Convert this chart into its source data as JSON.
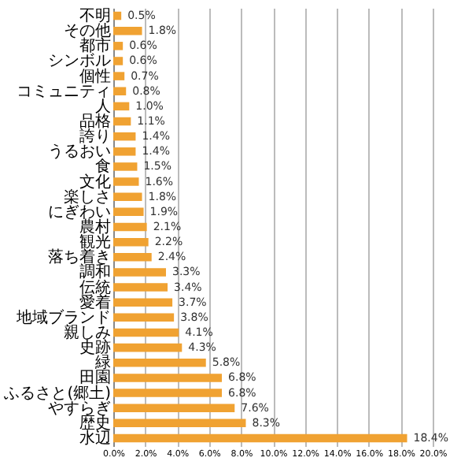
{
  "chart_data": {
    "type": "bar",
    "orientation": "horizontal",
    "categories": [
      "不明",
      "その他",
      "都市",
      "シンボル",
      "個性",
      "コミュニティ",
      "人",
      "品格",
      "誇り",
      "うるおい",
      "食",
      "文化",
      "楽しさ",
      "にぎわい",
      "農村",
      "観光",
      "落ち着き",
      "調和",
      "伝統",
      "愛着",
      "地域ブランド",
      "親しみ",
      "史跡",
      "緑",
      "田園",
      "ふるさと(郷土)",
      "やすらぎ",
      "歴史",
      "水辺"
    ],
    "values": [
      0.5,
      1.8,
      0.6,
      0.6,
      0.7,
      0.8,
      1.0,
      1.1,
      1.4,
      1.4,
      1.5,
      1.6,
      1.8,
      1.9,
      2.1,
      2.2,
      2.4,
      3.3,
      3.4,
      3.7,
      3.8,
      4.1,
      4.3,
      5.8,
      6.8,
      6.8,
      7.6,
      8.3,
      18.4
    ],
    "value_labels": [
      "0.5%",
      "1.8%",
      "0.6%",
      "0.6%",
      "0.7%",
      "0.8%",
      "1.0%",
      "1.1%",
      "1.4%",
      "1.4%",
      "1.5%",
      "1.6%",
      "1.8%",
      "1.9%",
      "2.1%",
      "2.2%",
      "2.4%",
      "3.3%",
      "3.4%",
      "3.7%",
      "3.8%",
      "4.1%",
      "4.3%",
      "5.8%",
      "6.8%",
      "6.8%",
      "7.6%",
      "8.3%",
      "18.4%"
    ],
    "color": "#f0a232",
    "xlim": [
      0,
      20
    ],
    "xticks": [
      {
        "value": 0,
        "label": "0.0%"
      },
      {
        "value": 2,
        "label": "2.0%"
      },
      {
        "value": 4,
        "label": "4.0%"
      },
      {
        "value": 6,
        "label": "6.0%"
      },
      {
        "value": 8,
        "label": "8.0%"
      },
      {
        "value": 10,
        "label": "10.0%"
      },
      {
        "value": 12,
        "label": "12.0%"
      },
      {
        "value": 14,
        "label": "14.0%"
      },
      {
        "value": 16,
        "label": "16.0%"
      },
      {
        "value": 18,
        "label": "18.0%"
      },
      {
        "value": 20,
        "label": "20.0%"
      }
    ],
    "grid": "x"
  }
}
